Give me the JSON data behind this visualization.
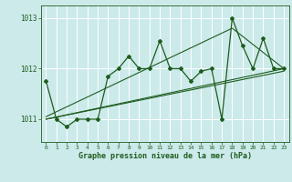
{
  "title": "Graphe pression niveau de la mer (hPa)",
  "background_color": "#cceaea",
  "plot_bg_color": "#cceaea",
  "grid_color": "#ffffff",
  "line_color": "#1e5c1e",
  "xlim": [
    -0.5,
    23.5
  ],
  "ylim": [
    1010.55,
    1013.25
  ],
  "yticks": [
    1011,
    1012,
    1013
  ],
  "xticks": [
    0,
    1,
    2,
    3,
    4,
    5,
    6,
    7,
    8,
    9,
    10,
    11,
    12,
    13,
    14,
    15,
    16,
    17,
    18,
    19,
    20,
    21,
    22,
    23
  ],
  "zigzag_x": [
    0,
    1,
    2,
    3,
    4,
    5,
    6,
    7,
    8,
    9,
    10,
    11,
    12,
    13,
    14,
    15,
    16,
    17,
    18,
    19,
    20,
    21,
    22,
    23
  ],
  "zigzag_y": [
    1011.75,
    1011.0,
    1010.85,
    1011.0,
    1011.0,
    1011.0,
    1011.85,
    1012.0,
    1012.25,
    1012.0,
    1012.0,
    1012.55,
    1012.0,
    1012.0,
    1011.75,
    1011.95,
    1012.0,
    1011.0,
    1013.0,
    1012.45,
    1012.0,
    1012.6,
    1012.0,
    1012.0
  ],
  "trend1_x": [
    0,
    23
  ],
  "trend1_y": [
    1011.0,
    1012.0
  ],
  "trend2_x": [
    0,
    23
  ],
  "trend2_y": [
    1011.0,
    1012.0
  ],
  "trend3_x": [
    0,
    23
  ],
  "trend3_y": [
    1011.05,
    1012.0
  ]
}
